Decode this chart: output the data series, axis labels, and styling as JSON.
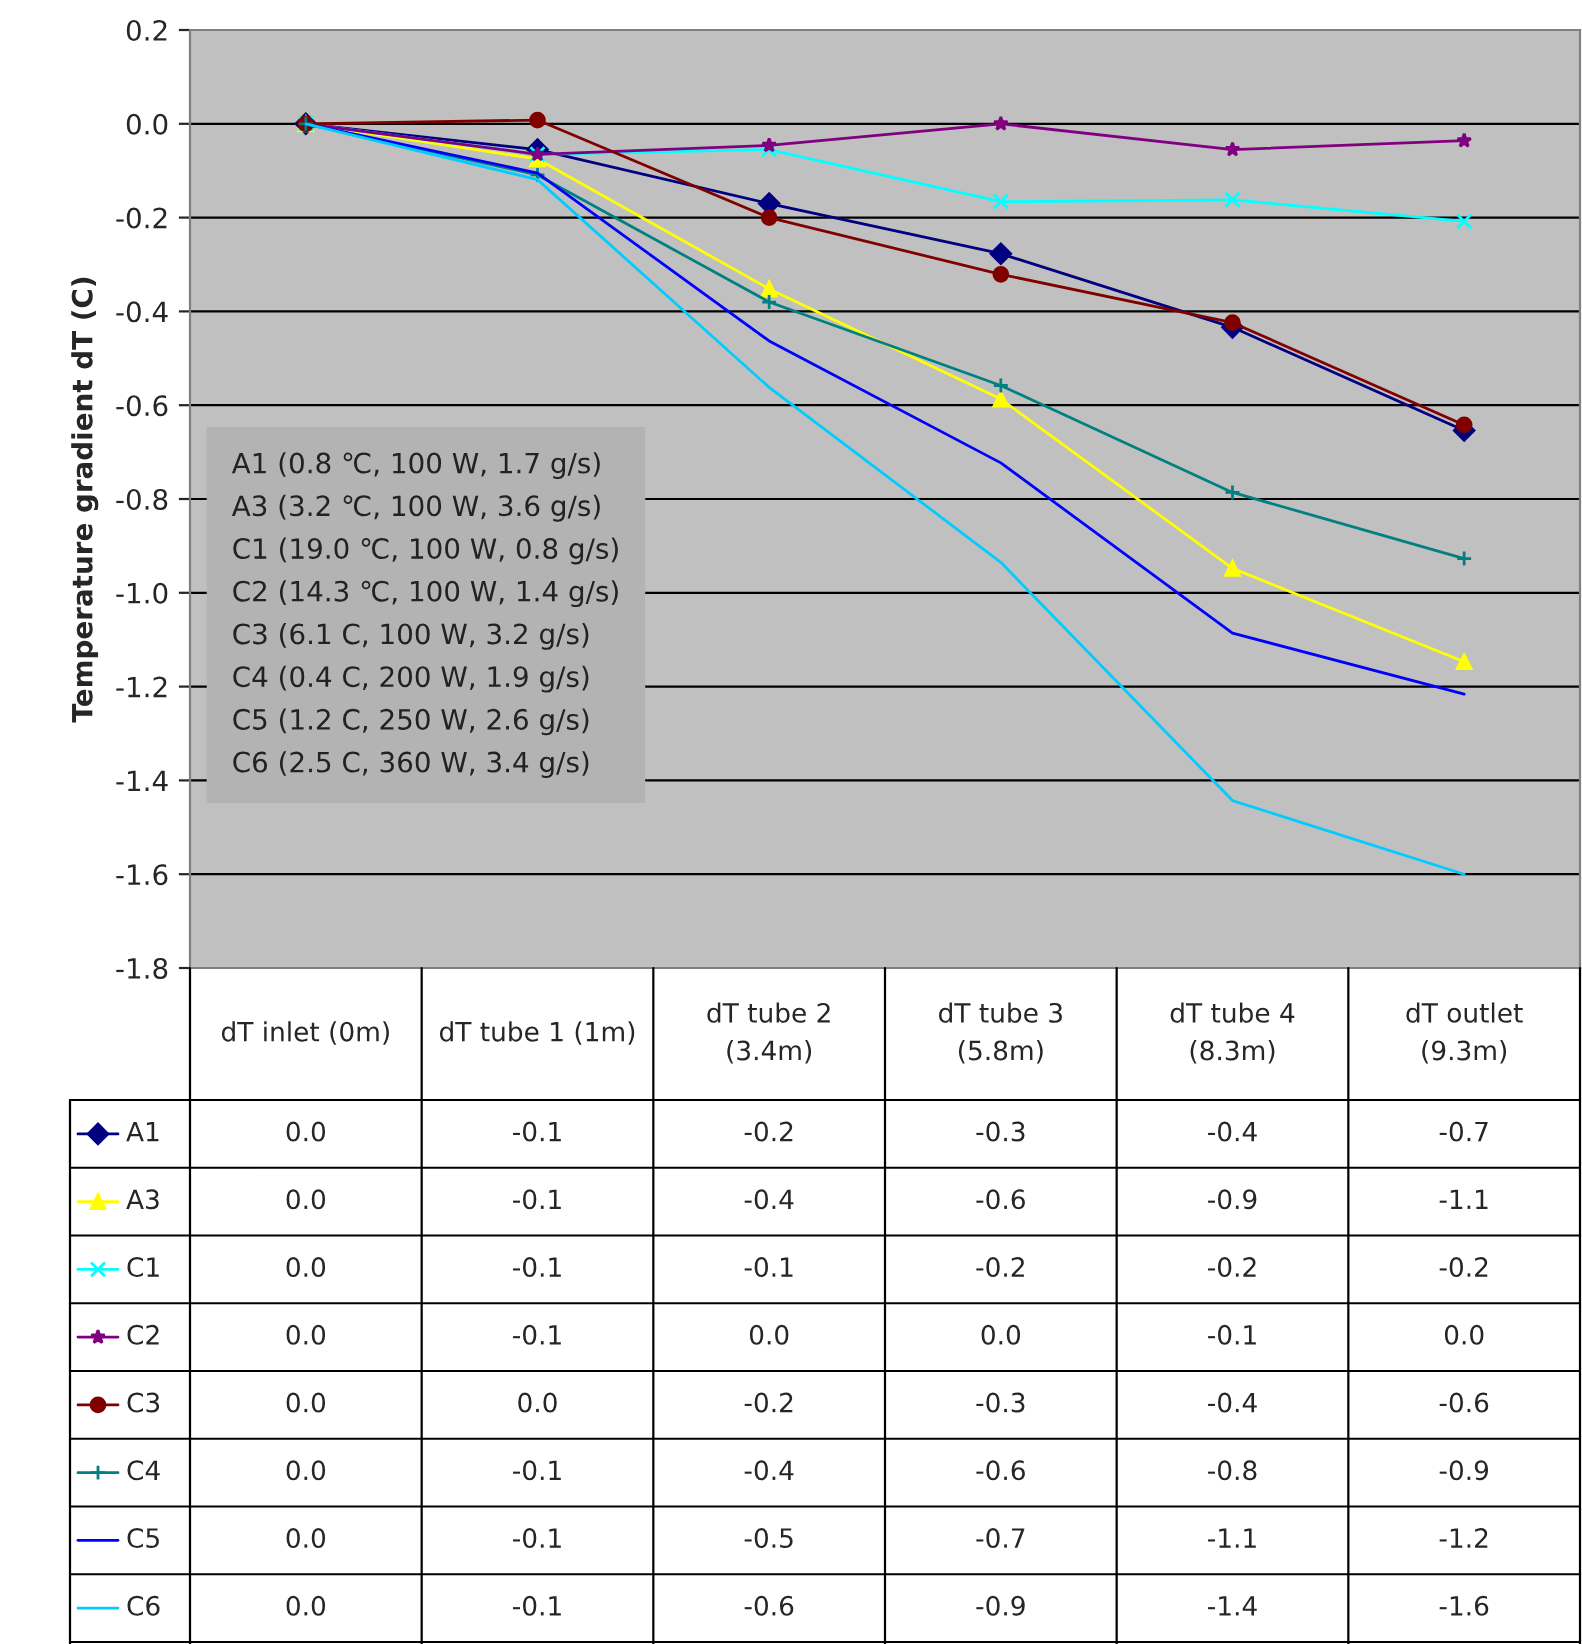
{
  "chart_data": {
    "type": "line",
    "ylabel": "Temperature gradient dT (C)",
    "categories": [
      "dT inlet (0m)",
      "dT tube 1 (1m)",
      "dT tube 2\n(3.4m)",
      "dT tube 3\n(5.8m)",
      "dT tube 4\n(8.3m)",
      "dT outlet\n(9.3m)"
    ],
    "ylim": [
      -1.8,
      0.2
    ],
    "yticks": [
      {
        "value": -1.8,
        "label": "-1.8"
      },
      {
        "value": -1.6,
        "label": "-1.6"
      },
      {
        "value": -1.4,
        "label": "-1.4"
      },
      {
        "value": -1.2,
        "label": "-1.2"
      },
      {
        "value": -1.0,
        "label": "-1.0"
      },
      {
        "value": -0.8,
        "label": "-0.8"
      },
      {
        "value": -0.6,
        "label": "-0.6"
      },
      {
        "value": -0.4,
        "label": "-0.4"
      },
      {
        "value": -0.2,
        "label": "-0.2"
      },
      {
        "value": 0,
        "label": "0.0"
      },
      {
        "value": 0.2,
        "label": "0.2"
      }
    ],
    "grid": "y",
    "legend": "bottom left",
    "series": [
      {
        "name": "A1",
        "color": "#000080",
        "marker": "diamond",
        "values": [
          0,
          -0.055,
          -0.17,
          -0.277,
          -0.434,
          -0.654
        ],
        "value_labels": [
          "0.0",
          "-0.1",
          "-0.2",
          "-0.3",
          "-0.4",
          "-0.7"
        ]
      },
      {
        "name": "A3",
        "color": "#ffff00",
        "marker": "triangle",
        "values": [
          0,
          -0.075,
          -0.352,
          -0.587,
          -0.948,
          -1.147
        ],
        "value_labels": [
          "0.0",
          "-0.1",
          "-0.4",
          "-0.6",
          "-0.9",
          "-1.1"
        ]
      },
      {
        "name": "C1",
        "color": "#00ffff",
        "marker": "cross",
        "values": [
          0,
          -0.065,
          -0.055,
          -0.166,
          -0.162,
          -0.208
        ],
        "value_labels": [
          "0.0",
          "-0.1",
          "-0.1",
          "-0.2",
          "-0.2",
          "-0.2"
        ]
      },
      {
        "name": "C2",
        "color": "#800080",
        "marker": "star",
        "values": [
          0,
          -0.065,
          -0.046,
          0.0,
          -0.055,
          -0.036
        ],
        "value_labels": [
          "0.0",
          "-0.1",
          "0.0",
          "0.0",
          "-0.1",
          "0.0"
        ]
      },
      {
        "name": "C3",
        "color": "#800000",
        "marker": "circle",
        "values": [
          0,
          0.008,
          -0.2,
          -0.321,
          -0.424,
          -0.642
        ],
        "value_labels": [
          "0.0",
          "0.0",
          "-0.2",
          "-0.3",
          "-0.4",
          "-0.6"
        ]
      },
      {
        "name": "C4",
        "color": "#008080",
        "marker": "plus",
        "values": [
          0,
          -0.109,
          -0.38,
          -0.558,
          -0.786,
          -0.927
        ],
        "value_labels": [
          "0.0",
          "-0.1",
          "-0.4",
          "-0.6",
          "-0.8",
          "-0.9"
        ]
      },
      {
        "name": "C5",
        "color": "#0000ff",
        "values": [
          0,
          -0.105,
          -0.463,
          -0.723,
          -1.086,
          -1.216
        ],
        "value_labels": [
          "0.0",
          "-0.1",
          "-0.5",
          "-0.7",
          "-1.1",
          "-1.2"
        ]
      },
      {
        "name": "C6",
        "color": "#00ccff",
        "values": [
          0,
          -0.119,
          -0.562,
          -0.935,
          -1.443,
          -1.6
        ],
        "value_labels": [
          "0.0",
          "-0.1",
          "-0.6",
          "-0.9",
          "-1.4",
          "-1.6"
        ]
      }
    ],
    "annotations": [
      "A1 (0.8 ℃, 100 W, 1.7 g/s)\nA3 (3.2 ℃, 100 W, 3.6 g/s)\nC1 (19.0 ℃, 100 W, 0.8 g/s)\nC2 (14.3 ℃, 100 W, 1.4 g/s)\nC3 (6.1 C, 100 W, 3.2 g/s)\nC4 (0.4 C, 200 W, 1.9 g/s)\nC5 (1.2 C, 250 W, 2.6 g/s)\nC6 (2.5 C, 360 W, 3.4 g/s)"
    ]
  }
}
